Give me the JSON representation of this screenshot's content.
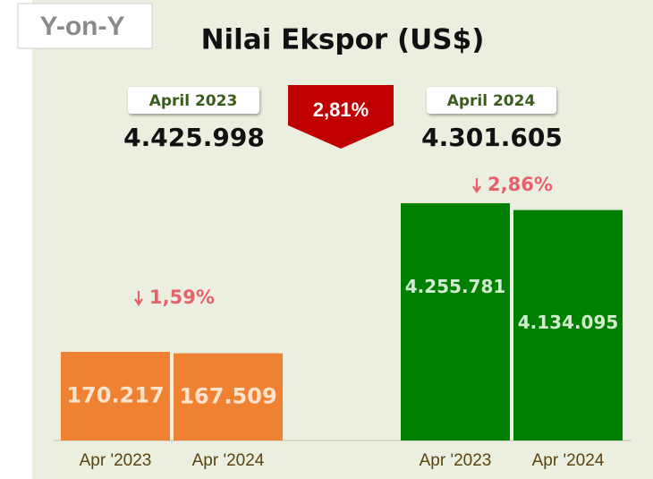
{
  "badge": "Y-on-Y",
  "summary": {
    "labels": [
      "April 2023",
      "April 2024"
    ],
    "values": [
      4425998,
      4301605
    ],
    "value_labels": [
      "4.425.998",
      "4.301.605"
    ],
    "change": 2.81,
    "change_label": "2,81%"
  },
  "chart_data": {
    "type": "bar",
    "title": "Nilai Ekspor (US$)",
    "groups": [
      {
        "color": "#ef8133",
        "label_color": "#fde3cc",
        "categories": [
          "Apr '2023",
          "Apr '2024"
        ],
        "values": [
          170217,
          167509
        ],
        "value_labels": [
          "170.217",
          "167.509"
        ],
        "change": 1.59,
        "change_label": "1,59%"
      },
      {
        "color": "#008000",
        "label_color": "#d3ecd0",
        "categories": [
          "Apr '2023",
          "Apr '2024"
        ],
        "values": [
          4255781,
          4134095
        ],
        "value_labels": [
          "4.255.781",
          "4.134.095"
        ],
        "change": 2.86,
        "change_label": "2,86%"
      }
    ]
  }
}
